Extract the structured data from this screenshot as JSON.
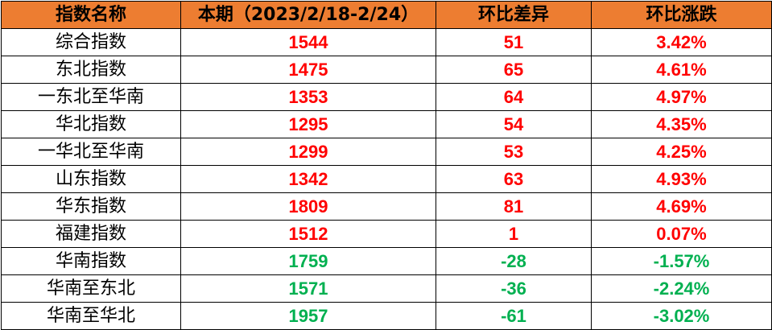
{
  "headers": [
    "指数名称",
    "本期（2023/2/18-2/24）",
    "环比差异",
    "环比涨跌"
  ],
  "colors": {
    "header_bg": "#ED7D31",
    "up": "#FF0000",
    "down": "#00B050"
  },
  "rows": [
    {
      "name": "综合指数",
      "value": "1544",
      "diff": "51",
      "pct": "3.42%",
      "trend": "up"
    },
    {
      "name": "东北指数",
      "value": "1475",
      "diff": "65",
      "pct": "4.61%",
      "trend": "up"
    },
    {
      "name": "一东北至华南",
      "value": "1353",
      "diff": "64",
      "pct": "4.97%",
      "trend": "up"
    },
    {
      "name": "华北指数",
      "value": "1295",
      "diff": "54",
      "pct": "4.35%",
      "trend": "up"
    },
    {
      "name": "一华北至华南",
      "value": "1299",
      "diff": "53",
      "pct": "4.25%",
      "trend": "up"
    },
    {
      "name": "山东指数",
      "value": "1342",
      "diff": "63",
      "pct": "4.93%",
      "trend": "up"
    },
    {
      "name": "华东指数",
      "value": "1809",
      "diff": "81",
      "pct": "4.69%",
      "trend": "up"
    },
    {
      "name": "福建指数",
      "value": "1512",
      "diff": "1",
      "pct": "0.07%",
      "trend": "up"
    },
    {
      "name": "华南指数",
      "value": "1759",
      "diff": "-28",
      "pct": "-1.57%",
      "trend": "down"
    },
    {
      "name": "华南至东北",
      "value": "1571",
      "diff": "-36",
      "pct": "-2.24%",
      "trend": "down"
    },
    {
      "name": "华南至华北",
      "value": "1957",
      "diff": "-61",
      "pct": "-3.02%",
      "trend": "down"
    }
  ]
}
